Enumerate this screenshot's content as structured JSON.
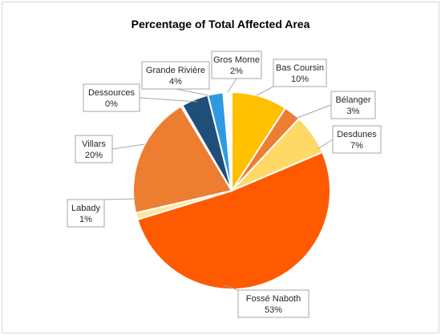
{
  "chart_data": {
    "type": "pie",
    "title": "Percentage of Total Affected Area",
    "slices": [
      {
        "label": "Bas Coursin",
        "value": 10,
        "display": "10%",
        "color": "#FFC000"
      },
      {
        "label": "Bélanger",
        "value": 3,
        "display": "3%",
        "color": "#ED7D31"
      },
      {
        "label": "Desdunes",
        "value": 7,
        "display": "7%",
        "color": "#FFD966"
      },
      {
        "label": "Fossé Naboth",
        "value": 53,
        "display": "53%",
        "color": "#FF5A00"
      },
      {
        "label": "Labady",
        "value": 1,
        "display": "1%",
        "color": "#FFE699"
      },
      {
        "label": "Villars",
        "value": 20,
        "display": "20%",
        "color": "#ED7D31"
      },
      {
        "label": "Dessources",
        "value": 0,
        "display": "0%",
        "color": "#C55A11"
      },
      {
        "label": "Grande Rivière",
        "value": 4,
        "display": "4%",
        "color": "#1F4E79"
      },
      {
        "label": "Gros Morne",
        "value": 2,
        "display": "2%",
        "color": "#2E9BE0"
      }
    ],
    "legend": "none"
  }
}
